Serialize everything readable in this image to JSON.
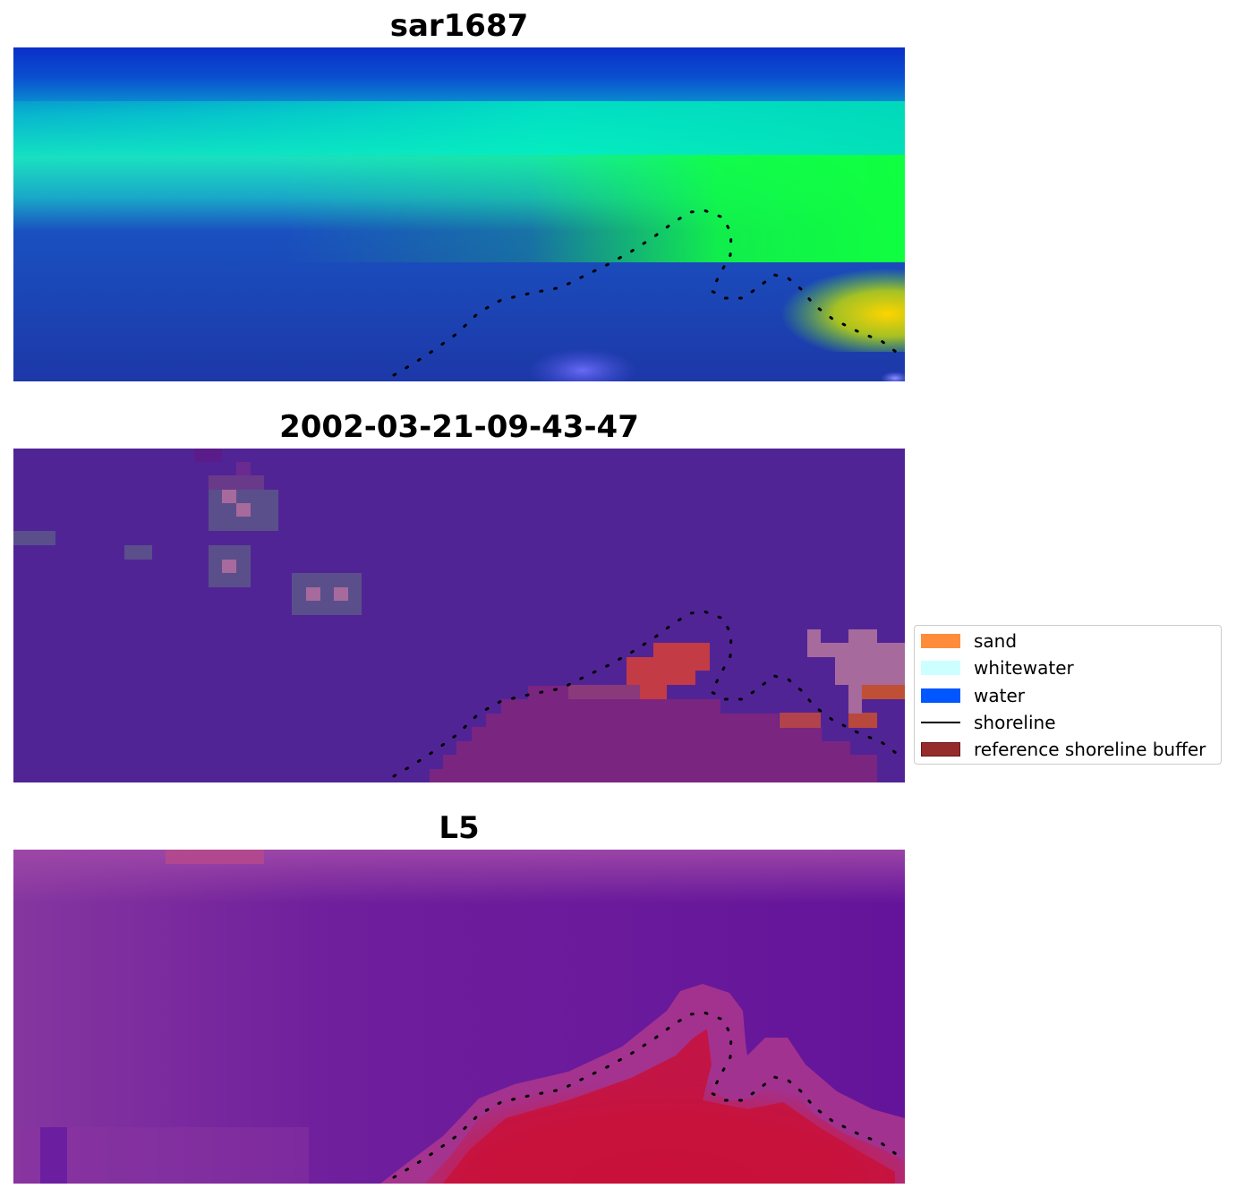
{
  "panels": [
    {
      "title": "sar1687",
      "image": "sar-false-color-raster"
    },
    {
      "title": "2002-03-21-09-43-47",
      "image": "classification-raster"
    },
    {
      "title": "L5",
      "image": "l5-index-raster"
    }
  ],
  "legend": {
    "items": [
      {
        "label": "sand",
        "color": "#ff8c3a",
        "kind": "patch"
      },
      {
        "label": "whitewater",
        "color": "#ccffff",
        "kind": "patch"
      },
      {
        "label": "water",
        "color": "#0057ff",
        "kind": "patch"
      },
      {
        "label": "shoreline",
        "color": "#000000",
        "kind": "line"
      },
      {
        "label": "reference shoreline buffer",
        "color": "#962b2b",
        "kind": "patch"
      }
    ]
  }
}
